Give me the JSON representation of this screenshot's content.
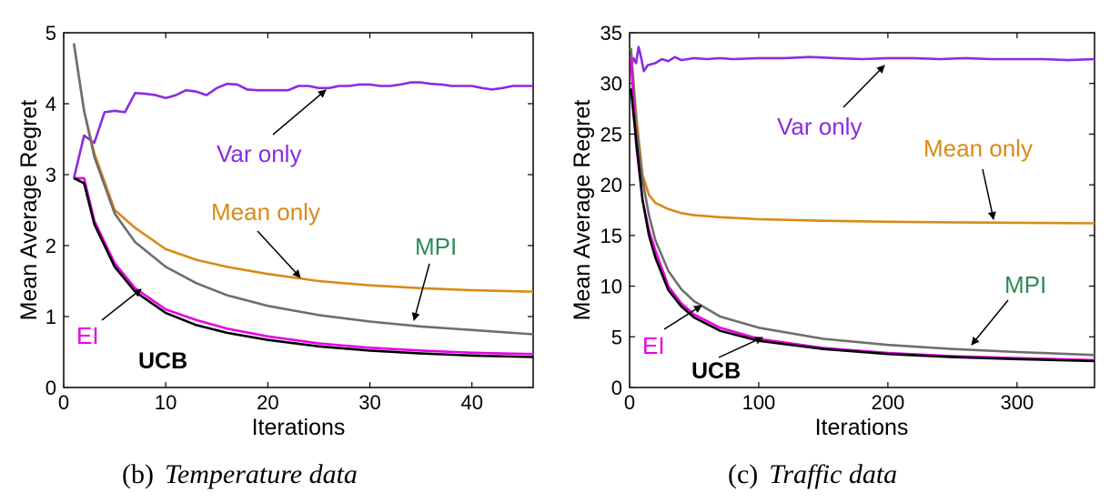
{
  "chart_data": [
    {
      "type": "line",
      "caption_label": "(b)",
      "caption_title": "Temperature data",
      "xlabel": "Iterations",
      "ylabel": "Mean Average Regret",
      "xlim": [
        0,
        46
      ],
      "ylim": [
        0,
        5
      ],
      "xticks": [
        0,
        10,
        20,
        30,
        40
      ],
      "yticks": [
        0,
        1,
        2,
        3,
        4,
        5
      ],
      "grid": false,
      "series": [
        {
          "name": "Var only",
          "color": "#8B2BE2",
          "x": [
            1,
            2,
            3,
            4,
            5,
            6,
            7,
            8,
            9,
            10,
            11,
            12,
            13,
            14,
            15,
            16,
            17,
            18,
            19,
            20,
            21,
            22,
            23,
            24,
            25,
            26,
            27,
            28,
            29,
            30,
            31,
            32,
            33,
            34,
            35,
            36,
            37,
            38,
            39,
            40,
            41,
            42,
            43,
            44,
            45,
            46
          ],
          "y": [
            2.95,
            3.55,
            3.45,
            3.88,
            3.9,
            3.88,
            4.15,
            4.14,
            4.12,
            4.08,
            4.12,
            4.19,
            4.17,
            4.12,
            4.22,
            4.28,
            4.27,
            4.2,
            4.19,
            4.19,
            4.19,
            4.19,
            4.25,
            4.25,
            4.22,
            4.22,
            4.25,
            4.25,
            4.27,
            4.27,
            4.25,
            4.25,
            4.27,
            4.3,
            4.3,
            4.28,
            4.27,
            4.25,
            4.25,
            4.25,
            4.22,
            4.2,
            4.22,
            4.25,
            4.25,
            4.25
          ]
        },
        {
          "name": "Mean only",
          "color": "#D98A17",
          "x": [
            1,
            2,
            3,
            5,
            7,
            10,
            13,
            16,
            20,
            25,
            30,
            35,
            40,
            46
          ],
          "y": [
            4.85,
            3.9,
            3.3,
            2.5,
            2.25,
            1.95,
            1.8,
            1.7,
            1.6,
            1.5,
            1.44,
            1.4,
            1.37,
            1.35
          ]
        },
        {
          "name": "MPI",
          "color": "#6E6E6E",
          "x": [
            1,
            2,
            3,
            5,
            7,
            10,
            13,
            16,
            20,
            25,
            30,
            35,
            40,
            46
          ],
          "y": [
            4.85,
            3.9,
            3.25,
            2.45,
            2.05,
            1.7,
            1.47,
            1.3,
            1.15,
            1.02,
            0.93,
            0.86,
            0.81,
            0.75
          ]
        },
        {
          "name": "EI",
          "color": "#E800E8",
          "x": [
            1,
            2,
            3,
            5,
            7,
            10,
            13,
            16,
            20,
            25,
            30,
            35,
            40,
            46
          ],
          "y": [
            2.95,
            2.95,
            2.35,
            1.75,
            1.4,
            1.1,
            0.95,
            0.83,
            0.72,
            0.62,
            0.56,
            0.52,
            0.49,
            0.47
          ]
        },
        {
          "name": "UCB",
          "color": "#000000",
          "x": [
            1,
            2,
            3,
            5,
            7,
            10,
            13,
            16,
            20,
            25,
            30,
            35,
            40,
            46
          ],
          "y": [
            2.95,
            2.88,
            2.3,
            1.7,
            1.35,
            1.05,
            0.88,
            0.77,
            0.67,
            0.58,
            0.52,
            0.48,
            0.45,
            0.43
          ]
        }
      ],
      "annotations": [
        "Var only",
        "Mean only",
        "MPI",
        "EI",
        "UCB"
      ]
    },
    {
      "type": "line",
      "caption_label": "(c)",
      "caption_title": "Traffic data",
      "xlabel": "Iterations",
      "ylabel": "Mean Average Regret",
      "xlim": [
        0,
        360
      ],
      "ylim": [
        0,
        35
      ],
      "xticks": [
        0,
        100,
        200,
        300
      ],
      "yticks": [
        0,
        5,
        10,
        15,
        20,
        25,
        30,
        35
      ],
      "grid": false,
      "series": [
        {
          "name": "Var only",
          "color": "#8B2BE2",
          "x": [
            1,
            3,
            5,
            7,
            9,
            11,
            14,
            17,
            20,
            25,
            30,
            35,
            40,
            45,
            50,
            60,
            70,
            80,
            100,
            120,
            140,
            160,
            180,
            200,
            220,
            240,
            260,
            280,
            300,
            320,
            340,
            360
          ],
          "y": [
            31.5,
            32.5,
            32.0,
            33.6,
            32.5,
            31.2,
            31.8,
            31.9,
            32.0,
            32.4,
            32.2,
            32.6,
            32.3,
            32.4,
            32.5,
            32.4,
            32.5,
            32.4,
            32.5,
            32.5,
            32.6,
            32.5,
            32.4,
            32.5,
            32.5,
            32.4,
            32.5,
            32.4,
            32.4,
            32.4,
            32.3,
            32.4
          ]
        },
        {
          "name": "Mean only",
          "color": "#D98A17",
          "x": [
            1,
            5,
            10,
            15,
            20,
            30,
            40,
            50,
            70,
            100,
            150,
            200,
            250,
            300,
            360
          ],
          "y": [
            33.5,
            27.0,
            21.0,
            19.0,
            18.2,
            17.6,
            17.2,
            17.0,
            16.8,
            16.6,
            16.45,
            16.35,
            16.3,
            16.25,
            16.2
          ]
        },
        {
          "name": "MPI",
          "color": "#6E6E6E",
          "x": [
            1,
            5,
            10,
            15,
            20,
            30,
            40,
            50,
            70,
            100,
            150,
            200,
            250,
            300,
            360
          ],
          "y": [
            33.5,
            26.0,
            20.5,
            17.0,
            14.5,
            11.5,
            9.7,
            8.5,
            7.0,
            5.9,
            4.8,
            4.2,
            3.8,
            3.5,
            3.2
          ]
        },
        {
          "name": "EI",
          "color": "#E800E8",
          "x": [
            1,
            5,
            10,
            15,
            20,
            30,
            40,
            50,
            70,
            100,
            150,
            200,
            250,
            300,
            360
          ],
          "y": [
            32.5,
            24.0,
            18.5,
            15.5,
            13.5,
            10.0,
            8.3,
            7.2,
            5.9,
            4.8,
            3.9,
            3.4,
            3.1,
            2.9,
            2.7
          ]
        },
        {
          "name": "UCB",
          "color": "#000000",
          "x": [
            1,
            5,
            10,
            15,
            20,
            30,
            40,
            50,
            70,
            100,
            150,
            200,
            250,
            300,
            360
          ],
          "y": [
            29.5,
            24.5,
            18.5,
            15.0,
            12.8,
            9.6,
            8.0,
            6.9,
            5.6,
            4.6,
            3.8,
            3.3,
            3.0,
            2.8,
            2.6
          ]
        }
      ],
      "annotations": [
        "Var only",
        "Mean only",
        "MPI",
        "EI",
        "UCB"
      ]
    }
  ]
}
